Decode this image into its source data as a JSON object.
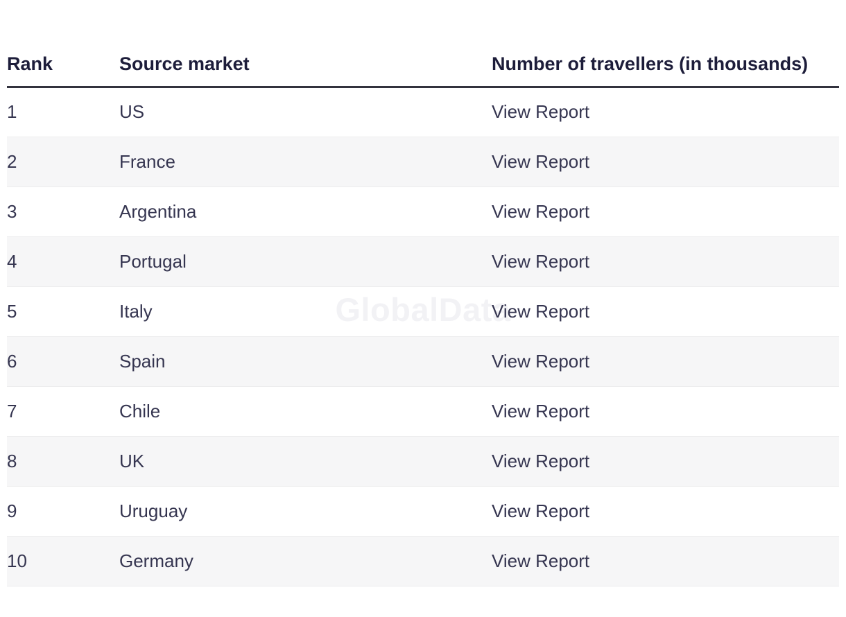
{
  "watermark": "GlobalData",
  "table": {
    "columns": [
      "Rank",
      "Source market",
      "Number of travellers (in thousands)"
    ],
    "rows": [
      {
        "rank": "1",
        "market": "US",
        "action": "View Report"
      },
      {
        "rank": "2",
        "market": "France",
        "action": "View Report"
      },
      {
        "rank": "3",
        "market": "Argentina",
        "action": "View Report"
      },
      {
        "rank": "4",
        "market": "Portugal",
        "action": "View Report"
      },
      {
        "rank": "5",
        "market": "Italy",
        "action": "View Report"
      },
      {
        "rank": "6",
        "market": "Spain",
        "action": "View Report"
      },
      {
        "rank": "7",
        "market": "Chile",
        "action": "View Report"
      },
      {
        "rank": "8",
        "market": "UK",
        "action": "View Report"
      },
      {
        "rank": "9",
        "market": "Uruguay",
        "action": "View Report"
      },
      {
        "rank": "10",
        "market": "Germany",
        "action": "View Report"
      }
    ]
  },
  "colors": {
    "stripe": "#f6f6f7",
    "header_text": "#1d1d3a",
    "body_text": "#353550",
    "header_border": "#32323e",
    "row_divider": "#ededee",
    "watermark": "#f2f2f5",
    "background": "#ffffff"
  }
}
